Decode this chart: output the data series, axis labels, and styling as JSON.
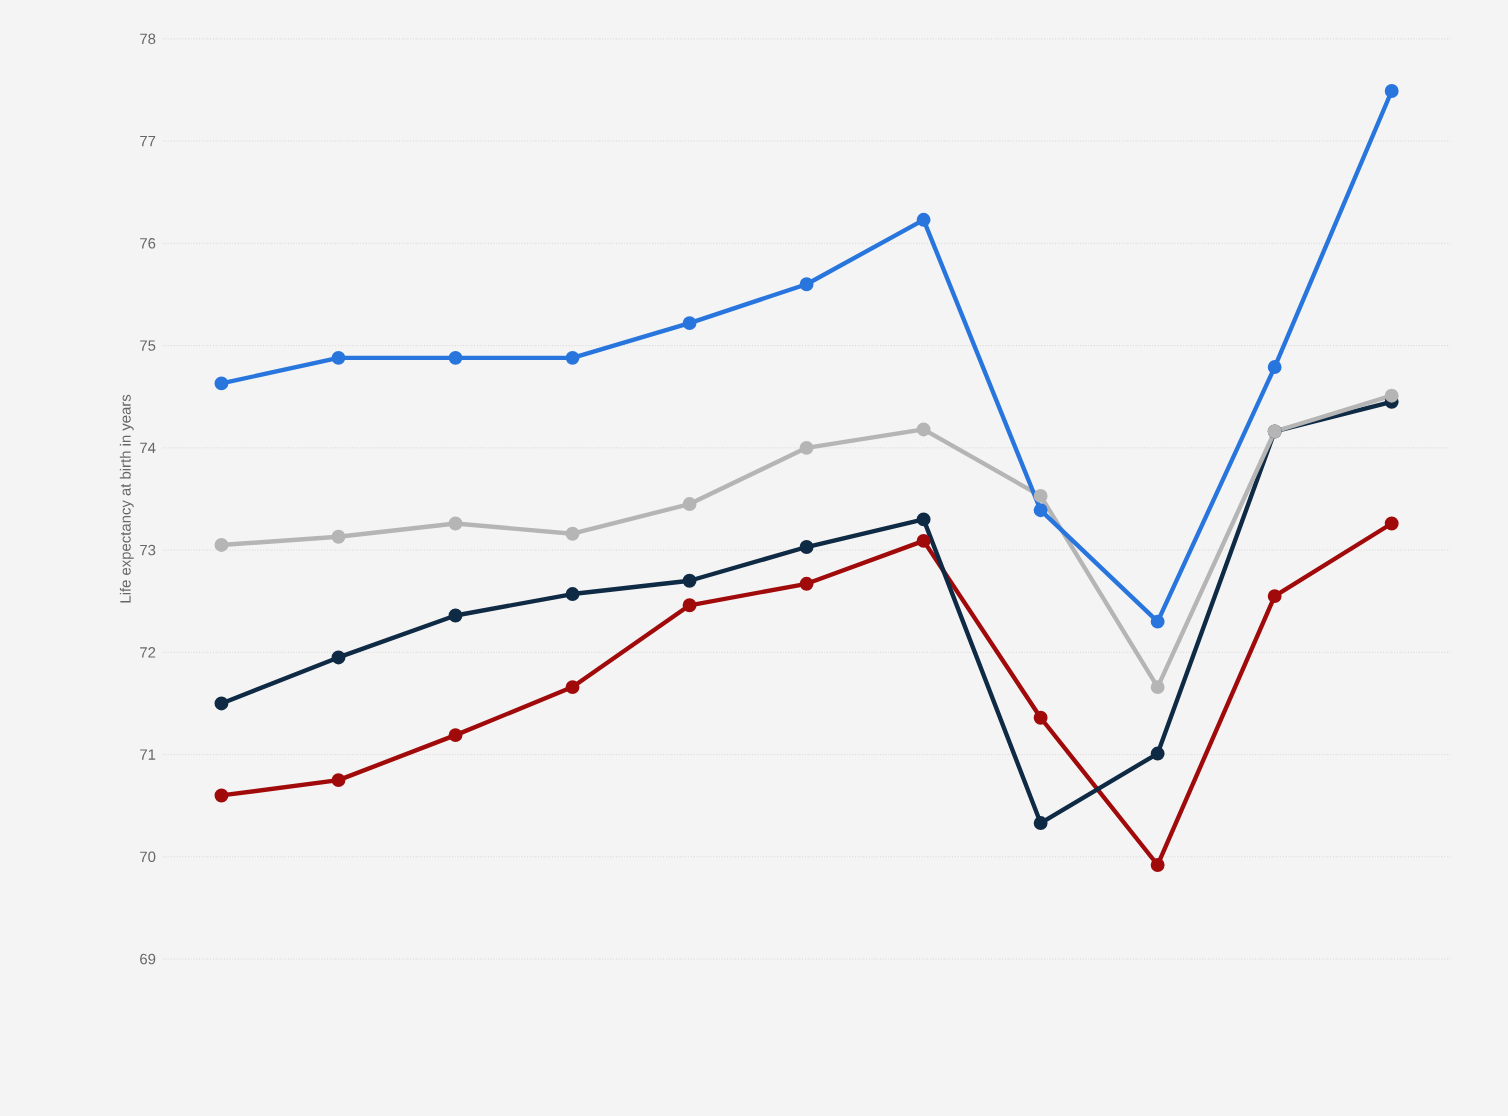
{
  "chart_data": {
    "type": "line",
    "ylabel": "Life expectancy at birth in years",
    "categories": [
      null,
      null,
      null,
      null,
      null,
      null,
      null,
      null,
      null,
      null,
      null
    ],
    "series": [
      {
        "color": "#2876dd",
        "values": [
          74.63,
          74.88,
          74.88,
          74.88,
          75.22,
          75.6,
          76.23,
          73.39,
          72.3,
          74.79,
          77.49
        ]
      },
      {
        "color": "#b5b5b5",
        "values": [
          73.05,
          73.13,
          73.26,
          73.16,
          73.45,
          74.0,
          74.18,
          73.53,
          71.66,
          74.16,
          74.51
        ]
      },
      {
        "color": "#0f2a44",
        "values": [
          71.5,
          71.95,
          72.36,
          72.57,
          72.7,
          73.03,
          73.3,
          70.33,
          71.01,
          74.16,
          74.45
        ]
      },
      {
        "color": "#a10a0a",
        "values": [
          70.6,
          70.75,
          71.19,
          71.66,
          72.46,
          72.67,
          73.09,
          71.36,
          69.92,
          72.55,
          73.26
        ]
      }
    ],
    "ylim": [
      69,
      78
    ],
    "yticks": [
      69,
      70,
      71,
      72,
      73,
      74,
      75,
      76,
      77,
      78
    ],
    "grid": "y",
    "marker": "circle",
    "line_style": "solid",
    "tick_labels": "y"
  }
}
